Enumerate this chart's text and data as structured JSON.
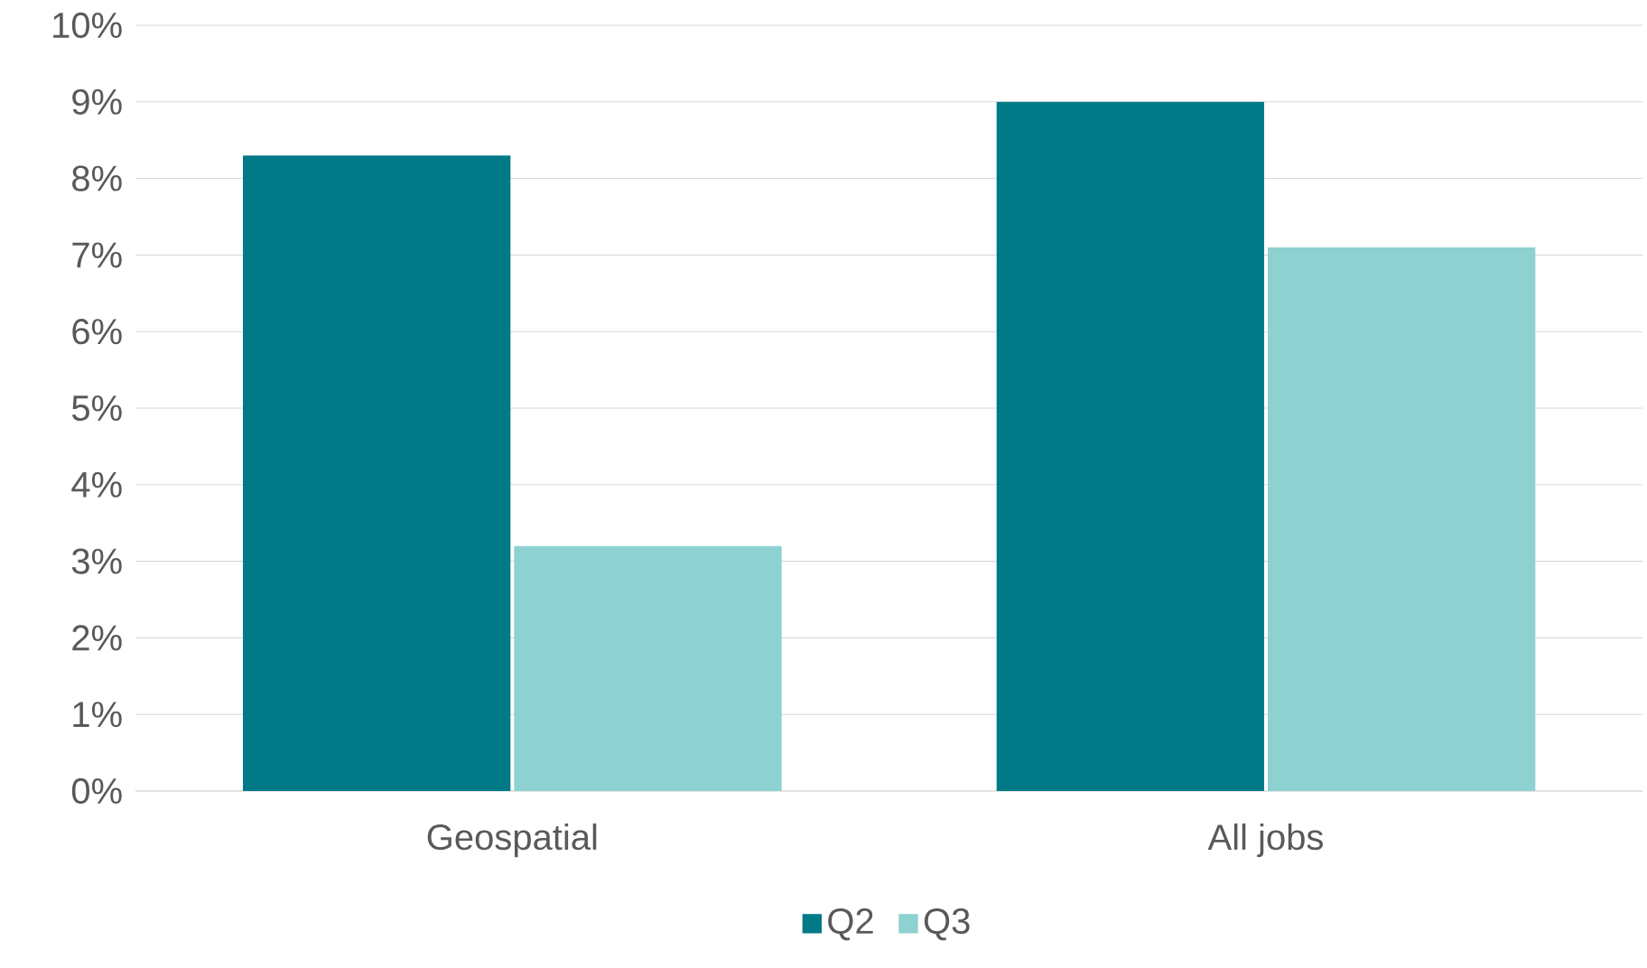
{
  "chart_data": {
    "type": "bar",
    "categories": [
      "Geospatial",
      "All jobs"
    ],
    "series": [
      {
        "name": "Q2",
        "color": "#007a87",
        "values": [
          8.3,
          9.0
        ]
      },
      {
        "name": "Q3",
        "color": "#8dd1d1",
        "values": [
          3.2,
          7.1
        ]
      }
    ],
    "ylim": [
      0,
      10
    ],
    "yticks": [
      {
        "value": 0,
        "label": "0%"
      },
      {
        "value": 1,
        "label": "1%"
      },
      {
        "value": 2,
        "label": "2%"
      },
      {
        "value": 3,
        "label": "3%"
      },
      {
        "value": 4,
        "label": "4%"
      },
      {
        "value": 5,
        "label": "5%"
      },
      {
        "value": 6,
        "label": "6%"
      },
      {
        "value": 7,
        "label": "7%"
      },
      {
        "value": 8,
        "label": "8%"
      },
      {
        "value": 9,
        "label": "9%"
      },
      {
        "value": 10,
        "label": "10%"
      }
    ],
    "grid": "y",
    "legend": "bottom"
  }
}
